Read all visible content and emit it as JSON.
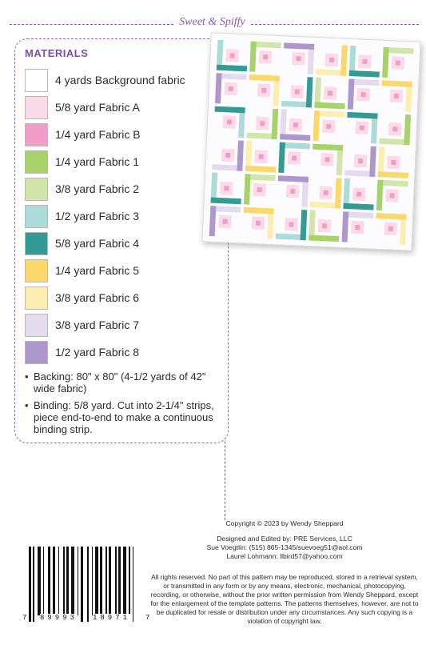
{
  "header": {
    "brand": "Sweet & Spiffy"
  },
  "materials": {
    "title": "MATERIALS",
    "items": [
      {
        "label": "4 yards Background fabric",
        "color": "#ffffff"
      },
      {
        "label": "5/8 yard Fabric A",
        "color": "#fbdbe8"
      },
      {
        "label": "1/4 yard Fabric B",
        "color": "#f29dc6"
      },
      {
        "label": "1/4 yard Fabric 1",
        "color": "#a8d26a"
      },
      {
        "label": "3/8 yard Fabric 2",
        "color": "#d2e6ac"
      },
      {
        "label": "1/2 yard Fabric 3",
        "color": "#abdcd8"
      },
      {
        "label": "5/8 yard Fabric 4",
        "color": "#339a94"
      },
      {
        "label": "1/4 yard Fabric 5",
        "color": "#fbd86a"
      },
      {
        "label": "3/8 yard Fabric 6",
        "color": "#fcedb0"
      },
      {
        "label": "3/8 yard Fabric 7",
        "color": "#e4dcee"
      },
      {
        "label": "1/2 yard Fabric 8",
        "color": "#ad98cc"
      }
    ],
    "bullets": [
      "Backing: 80\" x 80\" (4-1/2 yards of 42\" wide fabric)",
      "Binding: 5/8 yard. Cut into 2-1/4\" strips, piece end-to-end to make a continuous binding strip."
    ]
  },
  "credits": {
    "copyright": "Copyright © 2023 by Wendy Sheppard",
    "designed": "Designed and Edited by: PRE Services, LLC",
    "contact1": "Sue Voegtlin: (515) 865-1345/suevoeg51@aol.com",
    "contact2": "Laurel Lohmann: llbird57@yahoo.com",
    "rights": "All rights reserved. No part of this pattern may be reproduced, stored in a retrieval system, or transmitted in any form or by any means, electronic, mechanical, photocopying, recording, or otherwise, without the prior written permission from Wendy Sheppard, except for the enlargement of the template patterns. The patterns themselves, however, are not to be duplicated for resale or distribution under any circumstances. Any such copying is a violation of copyright law."
  },
  "barcode": {
    "digit_first": "7",
    "group_left": "89993",
    "group_right": "18971",
    "digit_last": "7"
  }
}
